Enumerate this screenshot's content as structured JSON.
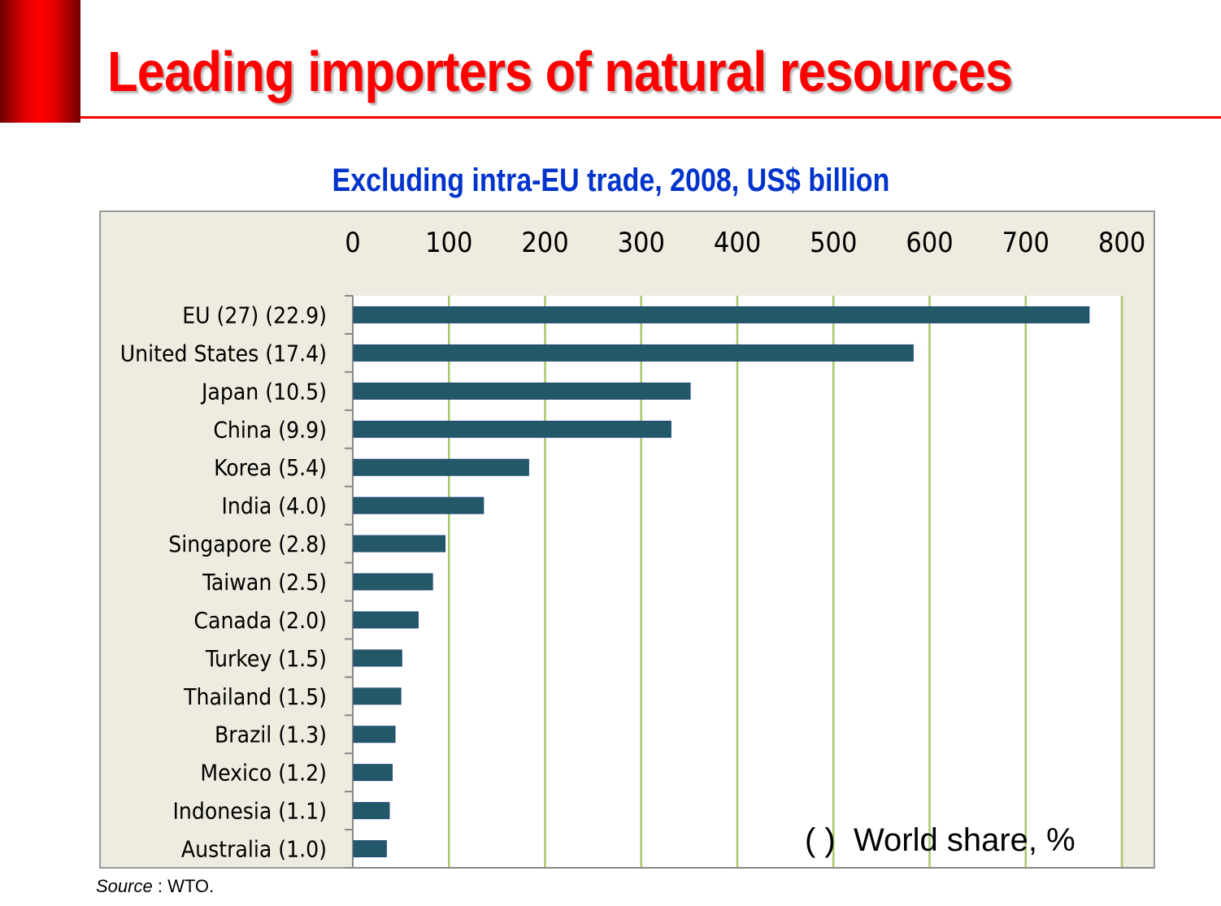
{
  "title": "Leading importers of natural resources",
  "source_label": "Source",
  "source_value": ": WTO.",
  "chart_data": {
    "type": "bar",
    "orientation": "horizontal",
    "title": "Excluding intra-EU trade, 2008, US$ billion",
    "annotation": "( )  World share, %",
    "categories": [
      "EU (27) (22.9)",
      "United States (17.4)",
      "Japan (10.5)",
      "China (9.9)",
      "Korea (5.4)",
      "India (4.0)",
      "Singapore (2.8)",
      "Taiwan (2.5)",
      "Canada (2.0)",
      "Turkey (1.5)",
      "Thailand (1.5)",
      "Brazil (1.3)",
      "Mexico (1.2)",
      "Indonesia (1.1)",
      "Australia (1.0)"
    ],
    "values": [
      766,
      583,
      351,
      331,
      183,
      136,
      96,
      83,
      68,
      51,
      50,
      44,
      41,
      38,
      35
    ],
    "xlim": [
      0,
      800
    ],
    "xticks": [
      "0",
      "100",
      "200",
      "300",
      "400",
      "500",
      "600",
      "700",
      "800"
    ],
    "axis_position": "top",
    "grid": true,
    "colors": {
      "bar": "#235868",
      "grid": "#a8c86a",
      "background": "#eeebe0",
      "plot": "#ffffff"
    }
  }
}
